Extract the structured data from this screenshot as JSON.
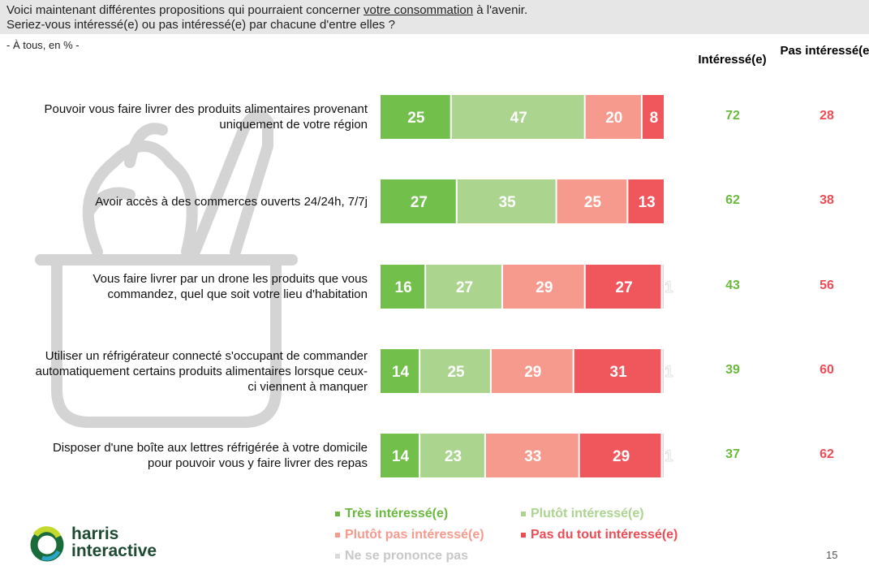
{
  "header": {
    "line1_pre": "Voici maintenant différentes propositions qui pourraient concerner ",
    "line1_underlined": "votre consommation",
    "line1_post": " à l'avenir.",
    "line2": "Seriez-vous intéressé(e) ou pas intéressé(e) par chacune d'entre elles ?"
  },
  "subtitle": "- À tous, en % -",
  "columns": {
    "interested": "Intéressé(e)",
    "not_interested": "Pas intéressé(e)"
  },
  "colors": {
    "tres": "#72c04b",
    "plutot": "#abd58f",
    "plutot_pas": "#f69a8e",
    "pas_du_tout": "#f0575c",
    "nsp": "#d9d9d9",
    "interested_text": "#6ab93f",
    "not_interested_text": "#ee4c55"
  },
  "chart_data": {
    "type": "bar",
    "orientation": "horizontal",
    "stacked": true,
    "categories": [
      "Pouvoir vous faire livrer des produits alimentaires provenant uniquement de votre région",
      "Avoir accès à des commerces ouverts 24/24h, 7/7j",
      "Vous faire livrer par un drone les produits que vous commandez, quel que soit votre lieu d'habitation",
      "Utiliser un réfrigérateur connecté s'occupant de commander automatiquement certains produits alimentaires lorsque ceux-ci viennent à manquer",
      "Disposer d'une boîte aux lettres réfrigérée à votre domicile pour pouvoir vous y faire livrer des repas"
    ],
    "series": [
      {
        "name": "Très intéressé(e)",
        "values": [
          25,
          27,
          16,
          14,
          14
        ]
      },
      {
        "name": "Plutôt intéressé(e)",
        "values": [
          47,
          35,
          27,
          25,
          23
        ]
      },
      {
        "name": "Plutôt pas intéressé(e)",
        "values": [
          20,
          25,
          29,
          29,
          33
        ]
      },
      {
        "name": "Pas du tout intéressé(e)",
        "values": [
          8,
          13,
          27,
          31,
          29
        ]
      },
      {
        "name": "Ne se prononce pas",
        "values": [
          0,
          0,
          1,
          1,
          1
        ]
      }
    ],
    "totals_interested": [
      72,
      62,
      43,
      39,
      37
    ],
    "totals_not_interested": [
      28,
      38,
      56,
      60,
      62
    ],
    "xlim": [
      0,
      100
    ],
    "legend": "bottom"
  },
  "page_number": "15",
  "logo": "harris interactive"
}
